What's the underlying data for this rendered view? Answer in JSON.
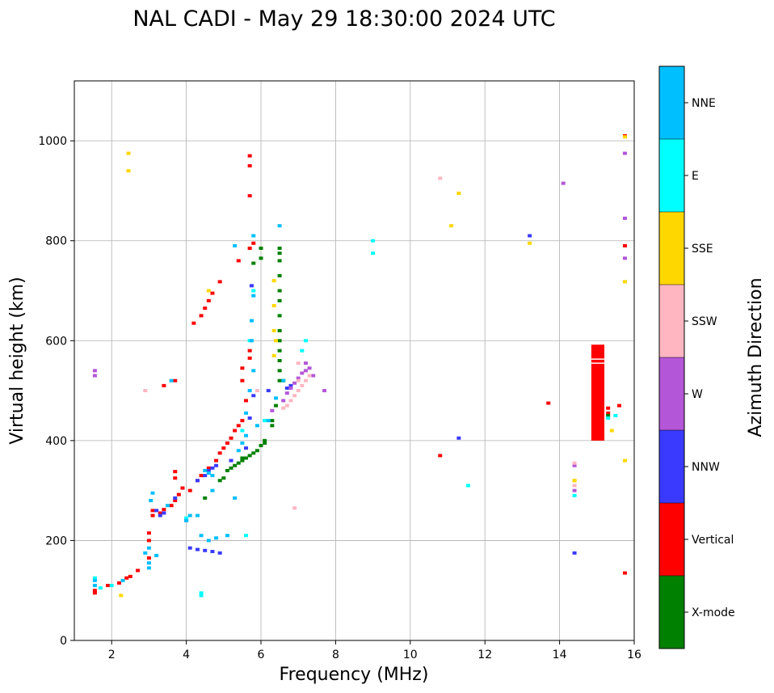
{
  "chart_data": {
    "type": "scatter",
    "title": "NAL CADI - May 29 18:30:00 2024 UTC",
    "xlabel": "Frequency (MHz)",
    "ylabel": "Virtual height (km)",
    "xlim": [
      1,
      16
    ],
    "ylim": [
      0,
      1120
    ],
    "xticks": [
      2,
      4,
      6,
      8,
      10,
      12,
      14,
      16
    ],
    "yticks": [
      0,
      200,
      400,
      600,
      800,
      1000
    ],
    "grid": true,
    "colorbar": {
      "label": "Azimuth Direction",
      "categories": [
        {
          "name": "X-mode",
          "color": "#008000"
        },
        {
          "name": "Vertical",
          "color": "#ff0000"
        },
        {
          "name": "NNW",
          "color": "#3a3aff"
        },
        {
          "name": "W",
          "color": "#b456d8"
        },
        {
          "name": "SSW",
          "color": "#ffb6c1"
        },
        {
          "name": "SSE",
          "color": "#ffd700"
        },
        {
          "name": "E",
          "color": "#00ffff"
        },
        {
          "name": "NNE",
          "color": "#00bfff"
        }
      ]
    },
    "series": [
      {
        "name": "Vertical",
        "points": [
          [
            1.55,
            100
          ],
          [
            1.55,
            95
          ],
          [
            1.9,
            110
          ],
          [
            2.2,
            115
          ],
          [
            2.4,
            125
          ],
          [
            2.5,
            128
          ],
          [
            2.7,
            140
          ],
          [
            3.0,
            165
          ],
          [
            3.0,
            200
          ],
          [
            3.0,
            215
          ],
          [
            3.1,
            250
          ],
          [
            3.1,
            260
          ],
          [
            3.3,
            255
          ],
          [
            3.4,
            262
          ],
          [
            3.6,
            270
          ],
          [
            3.7,
            280
          ],
          [
            3.8,
            292
          ],
          [
            3.9,
            305
          ],
          [
            3.7,
            325
          ],
          [
            3.7,
            338
          ],
          [
            3.7,
            520
          ],
          [
            3.4,
            510
          ],
          [
            4.1,
            300
          ],
          [
            4.3,
            320
          ],
          [
            4.4,
            330
          ],
          [
            4.6,
            345
          ],
          [
            4.8,
            360
          ],
          [
            4.9,
            375
          ],
          [
            5.0,
            385
          ],
          [
            5.1,
            395
          ],
          [
            5.2,
            405
          ],
          [
            5.3,
            420
          ],
          [
            5.4,
            430
          ],
          [
            5.5,
            440
          ],
          [
            5.5,
            520
          ],
          [
            5.5,
            545
          ],
          [
            5.7,
            565
          ],
          [
            5.7,
            580
          ],
          [
            5.6,
            480
          ],
          [
            5.7,
            970
          ],
          [
            5.7,
            950
          ],
          [
            5.7,
            890
          ],
          [
            5.4,
            760
          ],
          [
            4.2,
            635
          ],
          [
            4.4,
            650
          ],
          [
            4.5,
            665
          ],
          [
            4.6,
            680
          ],
          [
            4.7,
            695
          ],
          [
            4.9,
            718
          ],
          [
            5.7,
            785
          ],
          [
            5.8,
            795
          ],
          [
            10.8,
            370
          ],
          [
            13.7,
            475
          ],
          [
            15.75,
            1010
          ],
          [
            15.75,
            790
          ],
          [
            15.75,
            135
          ],
          [
            15.3,
            465
          ],
          [
            15.3,
            455
          ],
          [
            15.6,
            470
          ]
        ]
      },
      {
        "name": "X-mode",
        "points": [
          [
            5.1,
            340
          ],
          [
            5.2,
            345
          ],
          [
            5.3,
            350
          ],
          [
            5.4,
            355
          ],
          [
            5.5,
            360
          ],
          [
            5.6,
            365
          ],
          [
            5.7,
            370
          ],
          [
            5.8,
            375
          ],
          [
            5.9,
            380
          ],
          [
            6.0,
            390
          ],
          [
            6.1,
            395
          ],
          [
            6.1,
            400
          ],
          [
            4.9,
            320
          ],
          [
            5.0,
            325
          ],
          [
            6.3,
            430
          ],
          [
            6.3,
            440
          ],
          [
            6.4,
            470
          ],
          [
            6.5,
            520
          ],
          [
            6.5,
            540
          ],
          [
            6.5,
            560
          ],
          [
            6.5,
            580
          ],
          [
            6.5,
            600
          ],
          [
            6.5,
            620
          ],
          [
            6.5,
            650
          ],
          [
            6.5,
            680
          ],
          [
            6.5,
            700
          ],
          [
            6.5,
            730
          ],
          [
            6.5,
            760
          ],
          [
            6.5,
            775
          ],
          [
            6.5,
            785
          ],
          [
            6.0,
            785
          ],
          [
            6.0,
            765
          ],
          [
            5.8,
            755
          ],
          [
            5.5,
            365
          ],
          [
            4.5,
            285
          ],
          [
            6.6,
            520
          ],
          [
            15.3,
            450
          ]
        ]
      },
      {
        "name": "NNW",
        "points": [
          [
            4.1,
            185
          ],
          [
            4.3,
            182
          ],
          [
            4.5,
            180
          ],
          [
            4.7,
            178
          ],
          [
            4.9,
            175
          ],
          [
            3.7,
            285
          ],
          [
            3.2,
            260
          ],
          [
            3.3,
            250
          ],
          [
            3.4,
            255
          ],
          [
            4.3,
            320
          ],
          [
            4.5,
            330
          ],
          [
            4.6,
            340
          ],
          [
            4.7,
            345
          ],
          [
            4.8,
            350
          ],
          [
            5.2,
            360
          ],
          [
            5.6,
            385
          ],
          [
            5.7,
            445
          ],
          [
            5.8,
            490
          ],
          [
            6.2,
            500
          ],
          [
            6.7,
            505
          ],
          [
            6.8,
            510
          ],
          [
            11.3,
            405
          ],
          [
            13.2,
            810
          ],
          [
            14.4,
            175
          ],
          [
            5.75,
            710
          ],
          [
            4.0,
            240
          ]
        ]
      },
      {
        "name": "W",
        "points": [
          [
            1.55,
            540
          ],
          [
            1.55,
            530
          ],
          [
            6.6,
            480
          ],
          [
            6.7,
            495
          ],
          [
            6.8,
            505
          ],
          [
            6.9,
            515
          ],
          [
            7.0,
            525
          ],
          [
            7.1,
            535
          ],
          [
            7.2,
            540
          ],
          [
            7.3,
            545
          ],
          [
            7.4,
            530
          ],
          [
            7.2,
            555
          ],
          [
            14.1,
            915
          ],
          [
            14.4,
            350
          ],
          [
            14.4,
            300
          ],
          [
            15.75,
            975
          ],
          [
            15.75,
            845
          ],
          [
            15.75,
            765
          ],
          [
            7.7,
            500
          ],
          [
            6.3,
            460
          ]
        ]
      },
      {
        "name": "SSW",
        "points": [
          [
            2.9,
            500
          ],
          [
            6.6,
            465
          ],
          [
            6.7,
            470
          ],
          [
            6.8,
            480
          ],
          [
            6.9,
            490
          ],
          [
            7.0,
            500
          ],
          [
            7.1,
            510
          ],
          [
            7.2,
            520
          ],
          [
            7.3,
            530
          ],
          [
            7.0,
            555
          ],
          [
            7.0,
            520
          ],
          [
            10.8,
            925
          ],
          [
            14.4,
            310
          ],
          [
            14.4,
            355
          ],
          [
            6.9,
            265
          ],
          [
            5.9,
            500
          ]
        ]
      },
      {
        "name": "SSE",
        "points": [
          [
            2.25,
            90
          ],
          [
            2.45,
            975
          ],
          [
            2.45,
            940
          ],
          [
            6.35,
            720
          ],
          [
            6.35,
            670
          ],
          [
            6.35,
            620
          ],
          [
            6.4,
            600
          ],
          [
            6.35,
            570
          ],
          [
            11.1,
            830
          ],
          [
            11.3,
            895
          ],
          [
            13.2,
            795
          ],
          [
            14.4,
            320
          ],
          [
            14.4,
            320
          ],
          [
            15.4,
            420
          ],
          [
            15.75,
            718
          ],
          [
            15.75,
            360
          ],
          [
            15.75,
            1008
          ],
          [
            4.6,
            700
          ]
        ]
      },
      {
        "name": "E",
        "points": [
          [
            1.55,
            125
          ],
          [
            1.7,
            105
          ],
          [
            2.0,
            110
          ],
          [
            4.0,
            245
          ],
          [
            4.4,
            95
          ],
          [
            4.4,
            90
          ],
          [
            5.6,
            210
          ],
          [
            5.5,
            420
          ],
          [
            5.7,
            600
          ],
          [
            5.8,
            700
          ],
          [
            7.1,
            580
          ],
          [
            7.2,
            600
          ],
          [
            9.0,
            800
          ],
          [
            9.0,
            775
          ],
          [
            11.55,
            310
          ],
          [
            14.4,
            290
          ],
          [
            15.3,
            445
          ],
          [
            15.5,
            450
          ],
          [
            6.1,
            440
          ]
        ]
      },
      {
        "name": "NNE",
        "points": [
          [
            1.55,
            120
          ],
          [
            1.55,
            110
          ],
          [
            2.3,
            120
          ],
          [
            2.9,
            175
          ],
          [
            3.0,
            185
          ],
          [
            3.0,
            155
          ],
          [
            3.0,
            145
          ],
          [
            3.05,
            280
          ],
          [
            3.1,
            295
          ],
          [
            3.2,
            170
          ],
          [
            3.5,
            270
          ],
          [
            3.6,
            520
          ],
          [
            4.0,
            240
          ],
          [
            4.1,
            250
          ],
          [
            4.3,
            250
          ],
          [
            4.4,
            210
          ],
          [
            4.6,
            200
          ],
          [
            4.8,
            205
          ],
          [
            5.1,
            210
          ],
          [
            5.3,
            285
          ],
          [
            5.4,
            380
          ],
          [
            5.5,
            395
          ],
          [
            5.6,
            410
          ],
          [
            5.6,
            455
          ],
          [
            5.7,
            500
          ],
          [
            5.8,
            540
          ],
          [
            5.75,
            600
          ],
          [
            5.75,
            640
          ],
          [
            5.8,
            690
          ],
          [
            5.8,
            810
          ],
          [
            5.3,
            790
          ],
          [
            4.5,
            340
          ],
          [
            4.6,
            335
          ],
          [
            4.7,
            330
          ],
          [
            5.9,
            430
          ],
          [
            6.2,
            440
          ],
          [
            6.4,
            485
          ],
          [
            6.5,
            830
          ],
          [
            6.6,
            520
          ],
          [
            4.7,
            300
          ]
        ]
      }
    ],
    "bars": [
      {
        "name": "Vertical",
        "x0": 14.85,
        "x1": 15.2,
        "y0": 400,
        "y1": 592
      }
    ],
    "white_lines": [
      {
        "x0": 14.85,
        "x1": 15.2,
        "y": 555
      },
      {
        "x0": 14.85,
        "x1": 15.2,
        "y": 563
      }
    ]
  }
}
